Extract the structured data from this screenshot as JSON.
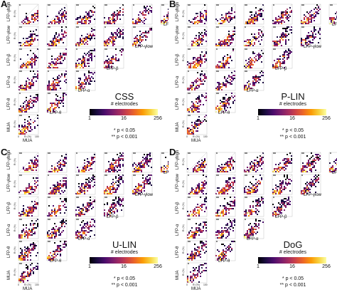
{
  "labels": {
    "measures": [
      "MUA",
      "LFP-θ",
      "LFP-α",
      "LFP-β",
      "LFP-γlow",
      "LFP-γhigh"
    ],
    "axis_r2": "R² (%)",
    "axis_0": "0",
    "axis_100": "100",
    "star1": "*",
    "star2": "**"
  },
  "panels": [
    {
      "letter": "A",
      "model": "CSS"
    },
    {
      "letter": "B",
      "model": "P-LIN"
    },
    {
      "letter": "C",
      "model": "U-LIN"
    },
    {
      "letter": "D",
      "model": "DoG"
    }
  ],
  "colorbar": {
    "title": "# electrodes",
    "ticks": [
      "1",
      "16",
      "256"
    ],
    "colormap": "inferno"
  },
  "significance": {
    "one_star": "* p < 0.05",
    "two_star": "** p < 0.001"
  }
}
